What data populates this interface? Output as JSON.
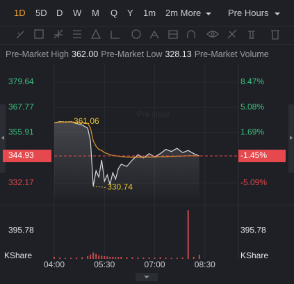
{
  "tabs": [
    "1D",
    "5D",
    "D",
    "W",
    "M",
    "Q",
    "Y",
    "1m"
  ],
  "more": "2m More",
  "session": "Pre Hours",
  "stats": [
    {
      "label": "Pre-Market High",
      "value": "362.00"
    },
    {
      "label": "Pre-Market Low",
      "value": "328.13"
    },
    {
      "label": "Pre-Market Volume"
    }
  ],
  "chart_data": {
    "type": "line",
    "watermark": "Pre Hour",
    "x": [
      "04:00",
      "04:10",
      "04:20",
      "04:30",
      "04:40",
      "04:50",
      "05:00",
      "05:05",
      "05:10",
      "05:15",
      "05:20",
      "05:25",
      "05:30",
      "05:35",
      "05:40",
      "05:45",
      "05:50",
      "05:55",
      "06:00",
      "06:10",
      "06:20",
      "06:30",
      "06:40",
      "06:50",
      "07:00",
      "07:10",
      "07:20",
      "07:30",
      "07:40",
      "07:50",
      "08:00",
      "08:10",
      "08:20"
    ],
    "xlim": [
      "04:00",
      "09:30"
    ],
    "xticks": [
      "04:00",
      "05:30",
      "07:00",
      "08:30"
    ],
    "series": [
      {
        "color": "#d8dade",
        "values": [
          360.5,
          361.06,
          360.8,
          361.0,
          360.2,
          359.5,
          358.0,
          352.0,
          330.74,
          338.0,
          335.0,
          343.0,
          333.0,
          336.0,
          331.5,
          337.0,
          334.0,
          339.0,
          341.0,
          340.0,
          343.0,
          345.5,
          344.0,
          346.0,
          344.5,
          346.0,
          348.0,
          347.0,
          348.5,
          346.5,
          347.5,
          346.0,
          344.93
        ]
      },
      {
        "color": "#e3972e",
        "values": [
          360.5,
          360.8,
          360.8,
          360.9,
          360.8,
          360.6,
          360.3,
          358.0,
          352.0,
          349.5,
          348.0,
          347.5,
          346.5,
          346.0,
          345.5,
          345.2,
          345.0,
          344.8,
          344.6,
          344.4,
          344.3,
          344.3,
          344.3,
          344.4,
          344.4,
          344.5,
          344.6,
          344.7,
          344.8,
          344.9,
          345.0,
          345.0,
          345.0
        ]
      }
    ],
    "ylim": [
      324.96,
      387.17
    ],
    "yticks": [
      379.64,
      367.77,
      355.91,
      332.17
    ],
    "y2lim": [
      -7.15,
      10.62
    ],
    "y2ticks": [
      {
        "value": 8.47,
        "label": "8.47%"
      },
      {
        "value": 5.08,
        "label": "5.08%"
      },
      {
        "value": 1.69,
        "label": "1.69%"
      },
      {
        "value": -5.09,
        "label": "-5.09%"
      }
    ],
    "last": {
      "value": 344.93,
      "change": {
        "value": -1.45,
        "label": "-1.45%"
      }
    },
    "high_marker": {
      "x": "04:10",
      "value": 361.06
    },
    "low_marker": {
      "x": "05:10",
      "value": 330.74
    },
    "volume": {
      "label": "KShare",
      "color": "#c84a4a",
      "values": [
        30,
        20,
        15,
        15,
        20,
        25,
        40,
        60,
        90,
        70,
        50,
        45,
        40,
        35,
        30,
        30,
        25,
        25,
        30,
        25,
        25,
        20,
        20,
        20,
        20,
        25,
        20,
        15,
        15,
        20,
        680,
        30,
        60
      ],
      "ylim": [
        0,
        700
      ],
      "yticks": [
        395.78
      ]
    }
  }
}
